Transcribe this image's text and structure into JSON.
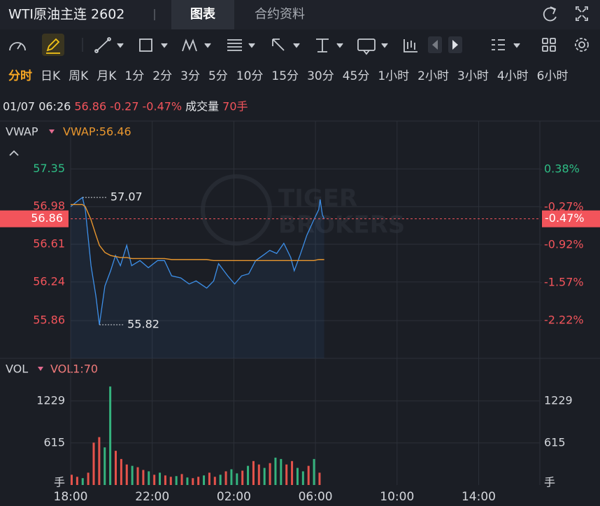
{
  "header": {
    "title": "WTI原油主连 2602",
    "tabs": [
      "图表",
      "合约资料"
    ],
    "active_tab": 0
  },
  "timeframes": [
    "分时",
    "日K",
    "周K",
    "月K",
    "1分",
    "2分",
    "3分",
    "5分",
    "10分",
    "15分",
    "30分",
    "45分",
    "1小时",
    "2小时",
    "3小时",
    "4小时",
    "6小时"
  ],
  "active_timeframe": 0,
  "info": {
    "time": "01/07 06:26",
    "price": "56.86",
    "change": "-0.27",
    "change_pct": "-0.47%",
    "volume_label": "成交量",
    "volume": "70手"
  },
  "watermark": [
    "TIGER",
    "BROKERS"
  ],
  "up_color": "#2ebd85",
  "down_color": "#f2545b",
  "chart_data": [
    {
      "type": "line",
      "title": "VWAP",
      "subtitle": "VWAP:56.46",
      "x": [
        0,
        0.31,
        0.58,
        0.72,
        1.0,
        1.24,
        1.41,
        1.68,
        1.96,
        2.2,
        2.44,
        2.75,
        2.99,
        3.4,
        3.81,
        4.26,
        4.6,
        4.95,
        5.4,
        5.81,
        6.15,
        6.67,
        7.01,
        7.25,
        7.7,
        8.04,
        8.38,
        8.73,
        9.07,
        9.42,
        9.76,
        10.1,
        10.45,
        10.79,
        10.96,
        11.24,
        11.58,
        11.92,
        12.16,
        12.23,
        12.34,
        12.43
      ],
      "series": [
        {
          "color": "#3d8fe8",
          "values": [
            56.98,
            57.03,
            57.07,
            56.95,
            56.4,
            56.1,
            55.82,
            56.2,
            56.35,
            56.5,
            56.4,
            56.6,
            56.4,
            56.45,
            56.38,
            56.45,
            56.45,
            56.3,
            56.28,
            56.22,
            56.25,
            56.18,
            56.25,
            56.42,
            56.3,
            56.22,
            56.3,
            56.32,
            56.45,
            56.5,
            56.55,
            56.52,
            56.62,
            56.48,
            56.35,
            56.5,
            56.7,
            56.85,
            56.95,
            57.05,
            56.9,
            56.86
          ]
        },
        {
          "name": "VWAP:56.46",
          "color": "#e8962e",
          "values": [
            57.0,
            57.0,
            57.0,
            56.98,
            56.85,
            56.7,
            56.6,
            56.53,
            56.5,
            56.49,
            56.48,
            56.48,
            56.47,
            56.47,
            56.47,
            56.47,
            56.47,
            56.46,
            56.46,
            56.46,
            56.46,
            56.46,
            56.45,
            56.45,
            56.45,
            56.45,
            56.45,
            56.45,
            56.45,
            56.45,
            56.45,
            56.45,
            56.45,
            56.45,
            56.45,
            56.45,
            56.45,
            56.45,
            56.46,
            56.46,
            56.46,
            56.46
          ]
        }
      ],
      "max_label": "57.07",
      "min_label": "55.82",
      "ylim": [
        55.49,
        57.82
      ],
      "yticks": [
        57.35,
        56.98,
        56.61,
        56.24,
        55.86
      ],
      "y2lim": [
        -2.87,
        1.21
      ],
      "y2ticks": [
        {
          "value": 0.38,
          "label": "0.38%"
        },
        {
          "value": -0.27,
          "label": "-0.27%"
        },
        {
          "value": -0.92,
          "label": "-0.92%"
        },
        {
          "value": -1.57,
          "label": "-1.57%"
        },
        {
          "value": -2.22,
          "label": "-2.22%"
        }
      ],
      "grid": true
    },
    {
      "type": "bar",
      "title": "VOL",
      "subtitle": "VOL1:70",
      "unit": "手",
      "x": [
        0,
        0.27,
        0.54,
        0.81,
        1.08,
        1.35,
        1.62,
        1.89,
        2.16,
        2.43,
        2.7,
        2.97,
        3.24,
        3.51,
        3.78,
        4.05,
        4.32,
        4.59,
        4.86,
        5.13,
        5.4,
        5.67,
        5.94,
        6.21,
        6.48,
        6.75,
        7.02,
        7.29,
        7.56,
        7.83,
        8.1,
        8.37,
        8.64,
        8.91,
        9.18,
        9.45,
        9.72,
        9.99,
        10.26,
        10.53,
        10.8,
        11.07,
        11.34,
        11.61,
        11.88,
        12.15
      ],
      "values": [
        150,
        120,
        100,
        180,
        620,
        700,
        550,
        1440,
        500,
        380,
        300,
        280,
        260,
        220,
        200,
        150,
        180,
        140,
        120,
        130,
        160,
        110,
        100,
        120,
        140,
        180,
        120,
        150,
        200,
        230,
        170,
        210,
        280,
        350,
        300,
        250,
        320,
        400,
        380,
        300,
        350,
        250,
        200,
        280,
        380,
        180
      ],
      "colors": [
        "#e5534b",
        "#e5534b",
        "#35b37e",
        "#e5534b",
        "#e5534b",
        "#e5534b",
        "#35b37e",
        "#35b37e",
        "#e5534b",
        "#e5534b",
        "#e5534b",
        "#35b37e",
        "#e5534b",
        "#e5534b",
        "#35b37e",
        "#e5534b",
        "#35b37e",
        "#e5534b",
        "#e5534b",
        "#35b37e",
        "#e5534b",
        "#35b37e",
        "#e5534b",
        "#e5534b",
        "#35b37e",
        "#e5534b",
        "#e5534b",
        "#35b37e",
        "#e5534b",
        "#35b37e",
        "#35b37e",
        "#e5534b",
        "#35b37e",
        "#e5534b",
        "#e5534b",
        "#35b37e",
        "#e5534b",
        "#35b37e",
        "#35b37e",
        "#e5534b",
        "#e5534b",
        "#35b37e",
        "#35b37e",
        "#e5534b",
        "#35b37e",
        "#e5534b"
      ],
      "ylim": [
        0,
        1852
      ],
      "yticks": [
        615,
        1229
      ],
      "xlim": [
        0,
        23
      ],
      "xticks": [
        {
          "value": 0,
          "label": "18:00"
        },
        {
          "value": 4,
          "label": "22:00"
        },
        {
          "value": 8,
          "label": "02:00"
        },
        {
          "value": 12,
          "label": "06:00"
        },
        {
          "value": 16,
          "label": "10:00"
        },
        {
          "value": 20,
          "label": "14:00"
        }
      ],
      "grid": true
    }
  ]
}
